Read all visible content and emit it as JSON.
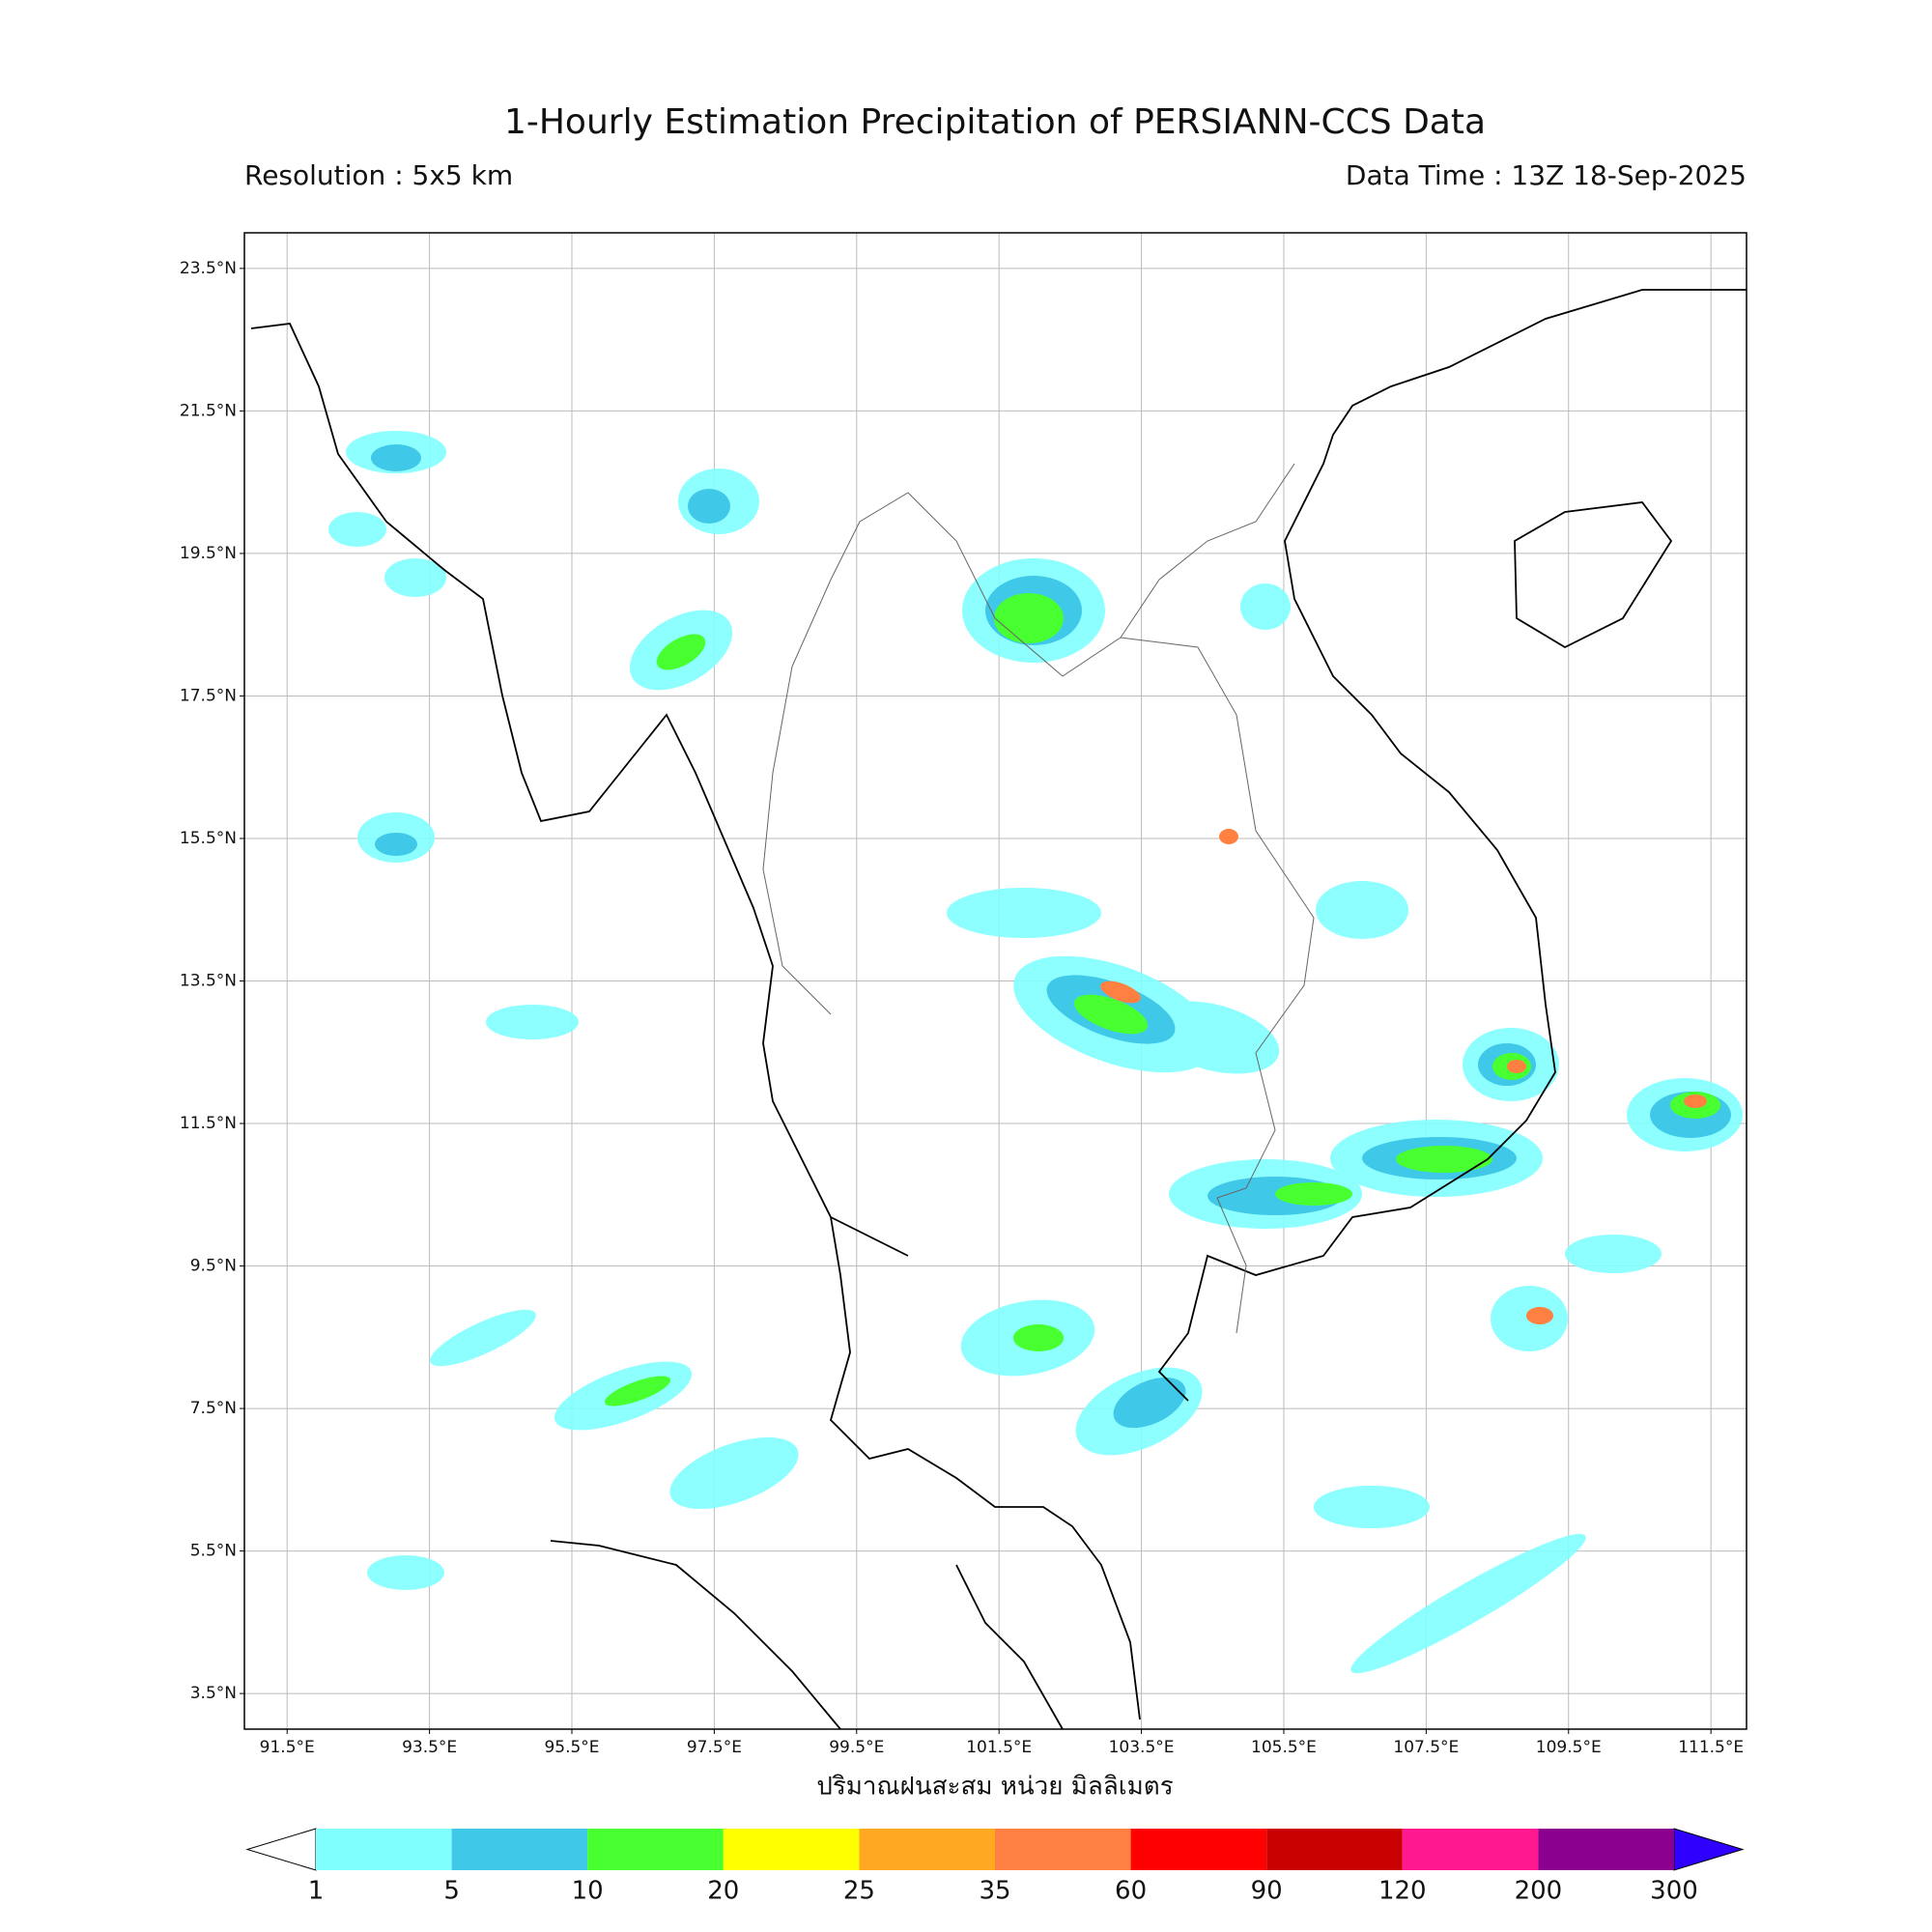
{
  "title": "1-Hourly Estimation Precipitation of PERSIANN-CCS Data",
  "subtitle_left": "Resolution : 5x5 km",
  "subtitle_right": "Data Time : 13Z 18-Sep-2025",
  "map": {
    "xlim": [
      90.9,
      112.0
    ],
    "ylim": [
      3.0,
      24.0
    ],
    "lon_ticks": [
      {
        "value": 91.5,
        "label": "91.5°E"
      },
      {
        "value": 93.5,
        "label": "93.5°E"
      },
      {
        "value": 95.5,
        "label": "95.5°E"
      },
      {
        "value": 97.5,
        "label": "97.5°E"
      },
      {
        "value": 99.5,
        "label": "99.5°E"
      },
      {
        "value": 101.5,
        "label": "101.5°E"
      },
      {
        "value": 103.5,
        "label": "103.5°E"
      },
      {
        "value": 105.5,
        "label": "105.5°E"
      },
      {
        "value": 107.5,
        "label": "107.5°E"
      },
      {
        "value": 109.5,
        "label": "109.5°E"
      },
      {
        "value": 111.5,
        "label": "111.5°E"
      }
    ],
    "lat_ticks": [
      {
        "value": 23.5,
        "label": "23.5°N"
      },
      {
        "value": 21.5,
        "label": "21.5°N"
      },
      {
        "value": 19.5,
        "label": "19.5°N"
      },
      {
        "value": 17.5,
        "label": "17.5°N"
      },
      {
        "value": 15.5,
        "label": "15.5°N"
      },
      {
        "value": 13.5,
        "label": "13.5°N"
      },
      {
        "value": 11.5,
        "label": "11.5°N"
      },
      {
        "value": 9.5,
        "label": "9.5°N"
      },
      {
        "value": 7.5,
        "label": "7.5°N"
      },
      {
        "value": 5.5,
        "label": "5.5°N"
      },
      {
        "value": 3.5,
        "label": "3.5°N"
      }
    ],
    "grid": true
  },
  "colorbar": {
    "label": "ปริมาณฝนสะสม หน่วย มิลลิเมตร",
    "levels": [
      1,
      5,
      10,
      20,
      25,
      35,
      60,
      90,
      120,
      200,
      300
    ],
    "colors": [
      "#80ffff",
      "#40c8e8",
      "#48ff30",
      "#ffff00",
      "#ffa820",
      "#ff8040",
      "#ff0000",
      "#c80000",
      "#ff1890",
      "#8c0090"
    ],
    "under_color": "#ffffff",
    "over_color": "#3000ff"
  }
}
